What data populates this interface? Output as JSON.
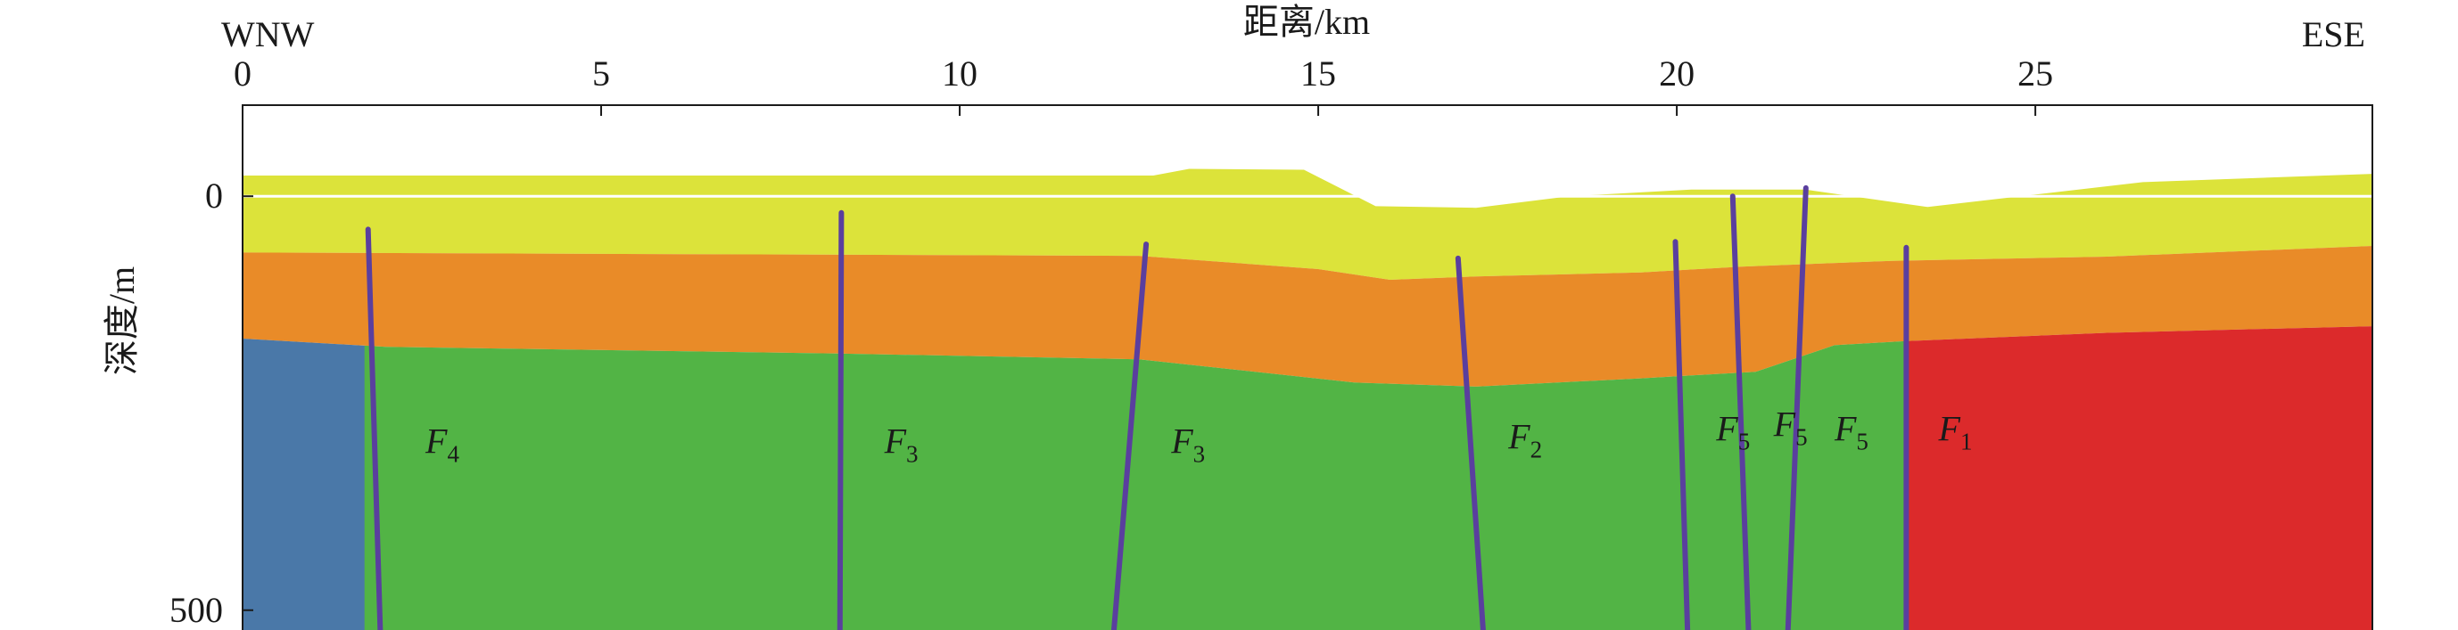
{
  "chart_data": {
    "type": "geologic-cross-section",
    "x_axis": {
      "title": "距离/km",
      "range": [
        0,
        29.7
      ],
      "ticks": [
        0,
        5,
        10,
        15,
        20,
        25
      ],
      "position": "top"
    },
    "y_axis": {
      "title": "深度/m",
      "range": [
        -110,
        525
      ],
      "ticks": [
        0,
        500
      ],
      "inverted": true
    },
    "direction_labels": {
      "left": "WNW",
      "right": "ESE"
    },
    "reference_line_depth": 0,
    "layers": [
      {
        "name": "top-layer",
        "color": "#dce33a",
        "top": [
          [
            0,
            -25
          ],
          [
            12.7,
            -25
          ],
          [
            13.2,
            -33
          ],
          [
            14.8,
            -32
          ],
          [
            15.8,
            12
          ],
          [
            17.2,
            14
          ],
          [
            18.5,
            0
          ],
          [
            20.2,
            -8
          ],
          [
            21.8,
            -8
          ],
          [
            23.5,
            13
          ],
          [
            26.5,
            -17
          ],
          [
            29.7,
            -27
          ]
        ],
        "bottom": [
          [
            0,
            68
          ],
          [
            12.5,
            72
          ],
          [
            15.0,
            88
          ],
          [
            16.0,
            101
          ],
          [
            17.2,
            97
          ],
          [
            19.5,
            92
          ],
          [
            20.9,
            85
          ],
          [
            23.0,
            78
          ],
          [
            26.0,
            73
          ],
          [
            29.7,
            60
          ]
        ]
      },
      {
        "name": "middle-layer",
        "color": "#e98b28",
        "top_ref": "top-layer.bottom",
        "bottom": [
          [
            0,
            172
          ],
          [
            2.0,
            182
          ],
          [
            8.3,
            190
          ],
          [
            12.5,
            197
          ],
          [
            15.5,
            225
          ],
          [
            17.2,
            230
          ],
          [
            19.5,
            220
          ],
          [
            21.1,
            212
          ],
          [
            22.2,
            180
          ],
          [
            23.2,
            175
          ],
          [
            26.0,
            165
          ],
          [
            29.7,
            157
          ]
        ]
      },
      {
        "name": "left-block",
        "color": "#4a78a8",
        "top_ref": "middle-layer.bottom",
        "x_range": [
          0,
          1.85
        ],
        "bottom_depth": 525
      },
      {
        "name": "central-block",
        "color": "#52b445",
        "top_ref": "middle-layer.bottom",
        "x_range": [
          1.7,
          23.2
        ],
        "bottom_depth": 525
      },
      {
        "name": "right-block",
        "color": "#dc2a2b",
        "top_ref": "middle-layer.bottom",
        "x_range": [
          23.2,
          29.7
        ],
        "bottom_depth": 525
      }
    ],
    "faults": [
      {
        "label": "F",
        "sub": "4",
        "color": "#5a3f9e",
        "top": [
          1.75,
          40
        ],
        "bottom": [
          1.92,
          525
        ],
        "label_at": [
          2.55,
          295
        ]
      },
      {
        "label": "F",
        "sub": "3",
        "color": "#5a3f9e",
        "top": [
          8.35,
          20
        ],
        "bottom": [
          8.33,
          525
        ],
        "label_at": [
          8.95,
          295
        ]
      },
      {
        "label": "F",
        "sub": "3",
        "color": "#5a3f9e",
        "top": [
          12.6,
          58
        ],
        "bottom": [
          12.15,
          525
        ],
        "label_at": [
          12.95,
          295
        ]
      },
      {
        "label": "F",
        "sub": "2",
        "color": "#5a3f9e",
        "top": [
          16.95,
          75
        ],
        "bottom": [
          17.3,
          525
        ],
        "label_at": [
          17.65,
          290
        ]
      },
      {
        "label": "F",
        "sub": "5",
        "color": "#5a3f9e",
        "top": [
          19.98,
          55
        ],
        "bottom": [
          20.15,
          525
        ],
        "label_at": [
          20.55,
          280
        ]
      },
      {
        "label": "F",
        "sub": "5",
        "color": "#5a3f9e",
        "top": [
          20.78,
          0
        ],
        "bottom": [
          21.0,
          525
        ],
        "label_at": [
          21.35,
          275
        ]
      },
      {
        "label": "F",
        "sub": "5",
        "color": "#5a3f9e",
        "top": [
          21.8,
          -10
        ],
        "bottom": [
          21.55,
          525
        ],
        "label_at": [
          22.2,
          280
        ]
      },
      {
        "label": "F",
        "sub": "1",
        "color": "#5a3f9e",
        "top": [
          23.2,
          62
        ],
        "bottom": [
          23.2,
          525
        ],
        "label_at": [
          23.65,
          280
        ]
      }
    ]
  }
}
